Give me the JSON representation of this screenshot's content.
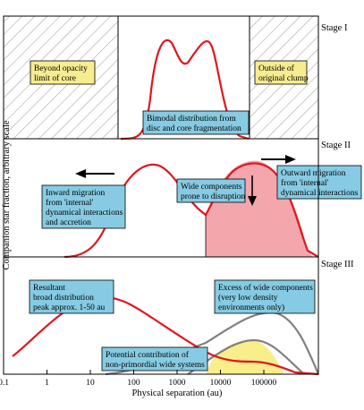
{
  "stages": [
    {
      "label": "Stage I",
      "annotations": [
        {
          "text": [
            "Beyond opacity",
            "limit of core"
          ],
          "fill": "#f7ec8f"
        },
        {
          "text": [
            "Outside of",
            "original clump"
          ],
          "fill": "#f7ec8f"
        },
        {
          "text": [
            "Bimodal distribution from",
            "disc and core fragmentation"
          ],
          "fill": "#86cbe3"
        }
      ]
    },
    {
      "label": "Stage II",
      "annotations": [
        {
          "text": [
            "Inward migration",
            "from 'internal'",
            "dynamical interactions",
            "and accretion"
          ],
          "fill": "#86cbe3"
        },
        {
          "text": [
            "Wide components",
            "prone to disruption"
          ],
          "fill": "#86cbe3"
        },
        {
          "text": [
            "Outward migration",
            "from 'internal'",
            "dynamical interactions"
          ],
          "fill": "#86cbe3"
        }
      ]
    },
    {
      "label": "Stage III",
      "annotations": [
        {
          "text": [
            "Resultant",
            "broad distribution",
            "peak approx. 1-50 au"
          ],
          "fill": "#86cbe3"
        },
        {
          "text": [
            "Excess of wide components",
            "(very low density",
            "environments only)"
          ],
          "fill": "#86cbe3"
        },
        {
          "text": [
            "Potential contribution of",
            "non-primordial wide systems"
          ],
          "fill": "#86cbe3"
        }
      ]
    }
  ],
  "x_axis": {
    "label": "Physical separation (au)",
    "ticks": [
      "0.1",
      "1",
      "10",
      "100",
      "1000",
      "10000",
      "100000"
    ]
  },
  "y_axis": {
    "label": "Companion star fraction, arbitrary scale"
  },
  "colors": {
    "curve": "#e0161f",
    "disrupted_fill": "#f4a6ad",
    "excess_fill": "#f8ee8a",
    "grey_curve": "#808080",
    "hatch": "#9a9a9a"
  }
}
